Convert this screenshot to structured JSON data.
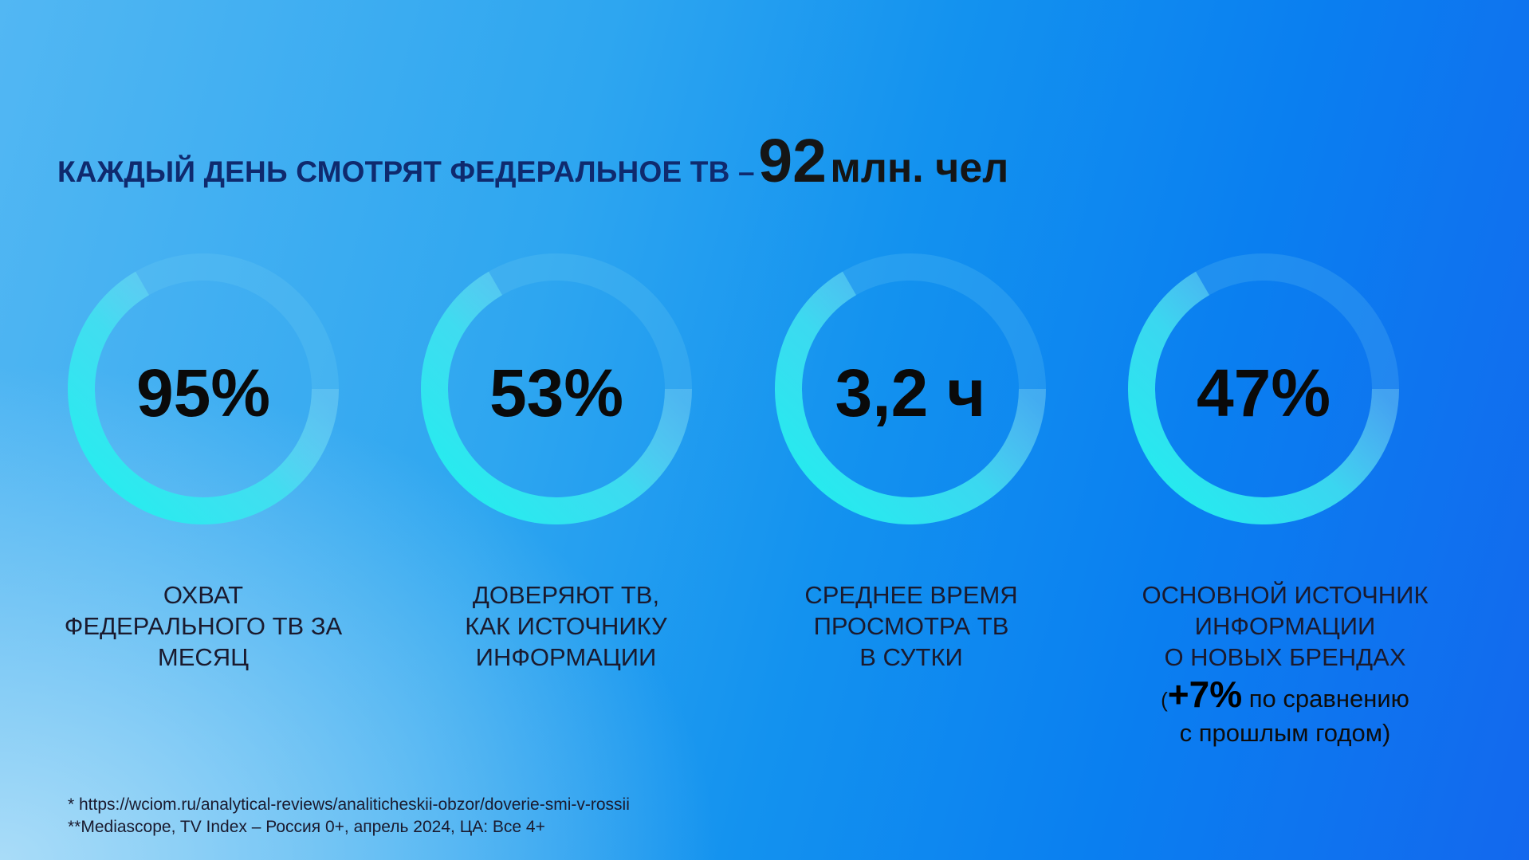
{
  "title": {
    "text": "КАЖДЫЙ ДЕНЬ СМОТРЯТ ФЕДЕРАЛЬНОЕ ТВ –",
    "number": "92",
    "unit": "млн. чел"
  },
  "metrics": [
    {
      "value": "95%",
      "description_lines": [
        "ОХВАТ",
        "ФЕДЕРАЛЬНОГО ТВ ЗА",
        "МЕСЯЦ"
      ]
    },
    {
      "value": "53%",
      "description_lines": [
        "ДОВЕРЯЮТ ТВ,",
        "КАК ИСТОЧНИКУ",
        "ИНФОРМАЦИИ"
      ]
    },
    {
      "value": "3,2 ч",
      "description_lines": [
        "СРЕДНЕЕ ВРЕМЯ",
        "ПРОСМОТРА ТВ",
        "В СУТКИ"
      ]
    },
    {
      "value": "47%",
      "description_lines": [
        "ОСНОВНОЙ ИСТОЧНИК",
        "ИНФОРМАЦИИ",
        "О НОВЫХ БРЕНДАХ"
      ],
      "extra": {
        "open_paren": "(",
        "highlight": "+7%",
        "text_line1": "по сравнению",
        "text_line2": "с прошлым годом)"
      }
    }
  ],
  "footnotes": [
    "* https://wciom.ru/analytical-reviews/analiticheskii-obzor/doverie-smi-v-rossii",
    "**Mediascope, TV Index – Россия 0+, апрель 2024, ЦА: Все 4+"
  ],
  "colors": {
    "ring_bright": "#1ff0ee",
    "ring_faint": "#5cd6f0",
    "title": "#0f2a6e",
    "background_left": "#52b7f3",
    "background_right": "#1368ee"
  }
}
